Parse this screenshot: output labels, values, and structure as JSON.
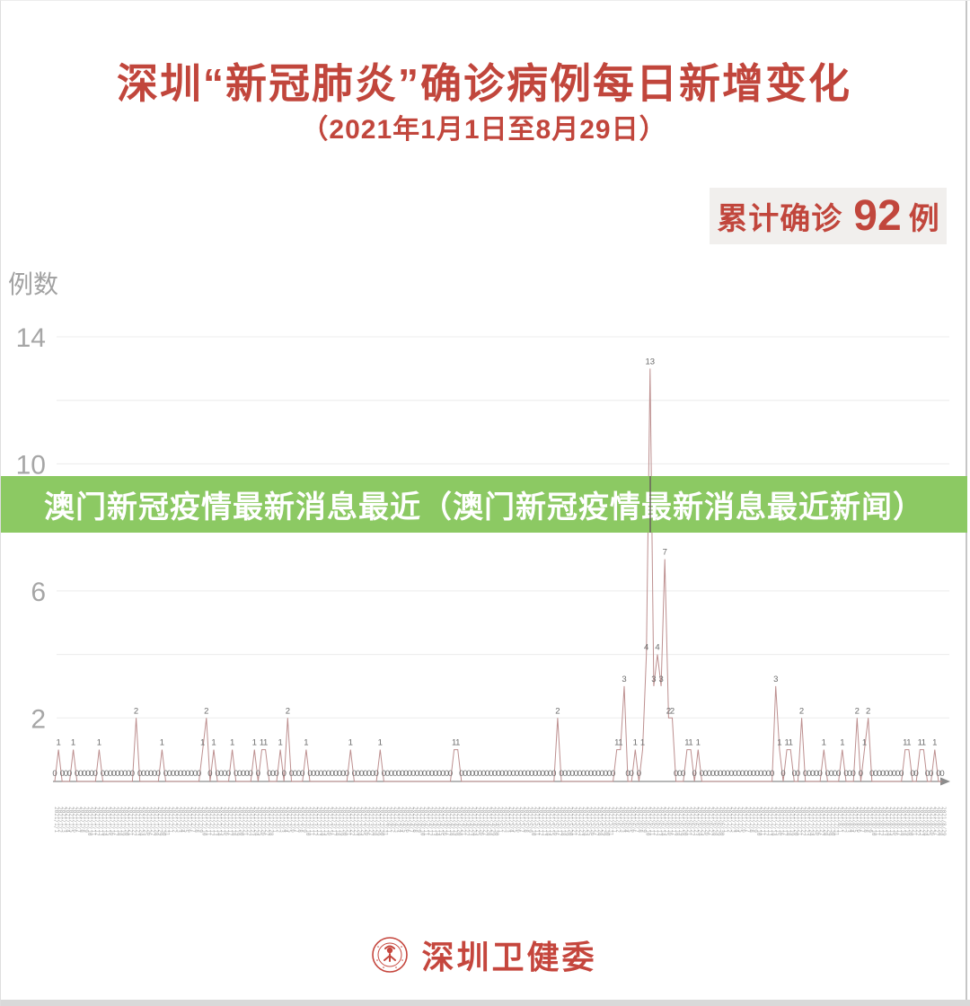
{
  "header": {
    "title": "深圳“新冠肺炎”确诊病例每日新增变化",
    "subtitle": "（2021年1月1日至8月29日）",
    "badge": {
      "label": "累计确诊",
      "value": "92",
      "unit": "例"
    }
  },
  "banner": {
    "text": "澳门新冠疫情最新消息最近（澳门新冠疫情最新消息最近新闻）",
    "color": "#8cc963"
  },
  "footer": {
    "brand": "深圳卫健委"
  },
  "chart_data": {
    "type": "line",
    "title": "深圳“新冠肺炎”确诊病例每日新增变化",
    "subtitle": "（2021年1月1日至8月29日）",
    "ylabel": "例数",
    "yticks": [
      14,
      10,
      6,
      2
    ],
    "ylim": [
      0,
      14
    ],
    "grid_step": 2,
    "grid": true,
    "x_start_date": "2021/1/1",
    "x_end_date": "2021/8/29",
    "num_days": 241,
    "cumulative_total": 92,
    "line_color": "#bd8f8f",
    "values": [
      0,
      1,
      0,
      0,
      0,
      1,
      0,
      0,
      0,
      0,
      0,
      0,
      1,
      0,
      0,
      0,
      0,
      0,
      0,
      0,
      0,
      0,
      2,
      0,
      0,
      0,
      0,
      0,
      0,
      1,
      0,
      0,
      0,
      0,
      0,
      0,
      0,
      0,
      0,
      0,
      1,
      2,
      0,
      1,
      0,
      0,
      0,
      0,
      1,
      0,
      0,
      0,
      0,
      0,
      1,
      0,
      1,
      1,
      0,
      0,
      0,
      1,
      0,
      2,
      0,
      0,
      0,
      0,
      1,
      0,
      0,
      0,
      0,
      0,
      0,
      0,
      0,
      0,
      0,
      0,
      1,
      0,
      0,
      0,
      0,
      0,
      0,
      0,
      1,
      0,
      0,
      0,
      0,
      0,
      0,
      0,
      0,
      0,
      0,
      0,
      0,
      0,
      0,
      0,
      0,
      0,
      0,
      0,
      1,
      1,
      0,
      0,
      0,
      0,
      0,
      0,
      0,
      0,
      0,
      0,
      0,
      0,
      0,
      0,
      0,
      0,
      0,
      0,
      0,
      0,
      0,
      0,
      0,
      0,
      0,
      0,
      2,
      0,
      0,
      0,
      0,
      0,
      0,
      0,
      0,
      0,
      0,
      0,
      0,
      0,
      0,
      0,
      1,
      1,
      3,
      0,
      0,
      1,
      0,
      1,
      4,
      13,
      3,
      4,
      3,
      7,
      2,
      2,
      0,
      0,
      0,
      1,
      1,
      0,
      1,
      0,
      0,
      0,
      0,
      0,
      0,
      0,
      0,
      0,
      0,
      0,
      0,
      0,
      0,
      0,
      0,
      0,
      0,
      0,
      0,
      3,
      1,
      0,
      1,
      1,
      0,
      0,
      2,
      0,
      0,
      0,
      0,
      0,
      1,
      0,
      0,
      0,
      0,
      1,
      0,
      0,
      0,
      2,
      0,
      1,
      2,
      0,
      0,
      0,
      0,
      0,
      0,
      0,
      0,
      0,
      1,
      1,
      0,
      0,
      1,
      1,
      0,
      0,
      1,
      0,
      0
    ]
  }
}
